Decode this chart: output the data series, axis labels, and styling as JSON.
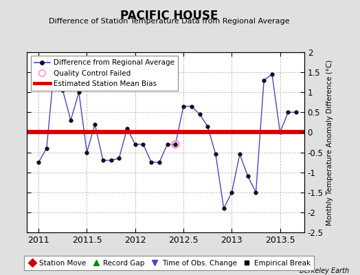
{
  "title": "PACIFIC HOUSE",
  "subtitle": "Difference of Station Temperature Data from Regional Average",
  "ylabel": "Monthly Temperature Anomaly Difference (°C)",
  "xlabel_ticks": [
    2011,
    2011.5,
    2012,
    2012.5,
    2013,
    2013.5
  ],
  "xlim": [
    2010.88,
    2013.75
  ],
  "ylim": [
    -2.5,
    2.0
  ],
  "yticks": [
    -2.5,
    -2.0,
    -1.5,
    -1.0,
    -0.5,
    0.0,
    0.5,
    1.0,
    1.5,
    2.0
  ],
  "bias_value": 0.0,
  "watermark": "Berkeley Earth",
  "background_color": "#e0e0e0",
  "plot_bg_color": "#ffffff",
  "line_color": "#4444cc",
  "bias_color": "#dd0000",
  "series_x": [
    2011.0,
    2011.083,
    2011.167,
    2011.25,
    2011.333,
    2011.417,
    2011.5,
    2011.583,
    2011.667,
    2011.75,
    2011.833,
    2011.917,
    2012.0,
    2012.083,
    2012.167,
    2012.25,
    2012.333,
    2012.417,
    2012.5,
    2012.583,
    2012.667,
    2012.75,
    2012.833,
    2012.917,
    2013.0,
    2013.083,
    2013.167,
    2013.25,
    2013.333,
    2013.417,
    2013.5,
    2013.583,
    2013.667
  ],
  "series_y": [
    -0.75,
    -0.4,
    1.75,
    1.05,
    0.3,
    1.0,
    -0.5,
    0.2,
    -0.7,
    -0.7,
    -0.65,
    0.1,
    -0.3,
    -0.3,
    -0.75,
    -0.75,
    -0.3,
    -0.3,
    0.65,
    0.65,
    0.45,
    0.15,
    -0.55,
    -1.9,
    -1.5,
    -0.55,
    -1.1,
    -1.5,
    1.3,
    1.45,
    0.0,
    0.5,
    0.5
  ],
  "qc_fail_x": [
    2012.417
  ],
  "qc_fail_y": [
    -0.3
  ],
  "legend2_items": [
    {
      "label": "Station Move",
      "color": "#cc0000",
      "marker": "D"
    },
    {
      "label": "Record Gap",
      "color": "#008800",
      "marker": "^"
    },
    {
      "label": "Time of Obs. Change",
      "color": "#4444cc",
      "marker": "v"
    },
    {
      "label": "Empirical Break",
      "color": "#000000",
      "marker": "s"
    }
  ]
}
